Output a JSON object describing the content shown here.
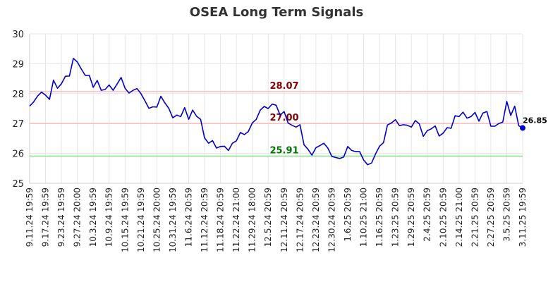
{
  "chart_data": {
    "type": "line",
    "title": "OSEA Long Term Signals",
    "xlabel": "",
    "ylabel": "",
    "ylim": [
      25,
      30
    ],
    "yticks": [
      "25",
      "26",
      "27",
      "28",
      "29",
      "30"
    ],
    "grid": true,
    "xticks": [
      "9.11.24 19:59",
      "9.17.24 19:59",
      "9.23.24 19:59",
      "9.27.24 20:00",
      "10.3.24 19:59",
      "10.9.24 19:59",
      "10.15.24 19:59",
      "10.21.24 19:59",
      "10.25.24 20:00",
      "10.31.24 19:59",
      "11.6.24 20:59",
      "11.12.24 20:59",
      "11.18.24 20:59",
      "11.22.24 21:00",
      "11.29.24 18:00",
      "12.5.24 20:59",
      "12.11.24 20:59",
      "12.17.24 20:59",
      "12.23.24 20:59",
      "12.30.24 20:59",
      "1.6.25 20:59",
      "1.10.25 21:00",
      "1.16.25 20:59",
      "1.23.25 20:59",
      "1.29.25 20:59",
      "2.4.25 20:59",
      "2.10.25 20:59",
      "2.14.25 21:00",
      "2.21.25 20:59",
      "2.27.25 20:59",
      "3.5.25 20:59",
      "3.11.25 19:59"
    ],
    "series": [
      {
        "color": "#0000cc",
        "values": [
          27.58,
          27.72,
          27.92,
          28.05,
          27.95,
          27.81,
          28.45,
          28.18,
          28.33,
          28.58,
          28.59,
          29.18,
          29.06,
          28.82,
          28.61,
          28.61,
          28.21,
          28.44,
          28.11,
          28.14,
          28.29,
          28.11,
          28.32,
          28.54,
          28.18,
          28.02,
          28.11,
          28.17,
          28.0,
          27.76,
          27.51,
          27.56,
          27.55,
          27.91,
          27.69,
          27.51,
          27.19,
          27.28,
          27.23,
          27.53,
          27.14,
          27.45,
          27.24,
          27.14,
          26.52,
          26.34,
          26.43,
          26.18,
          26.23,
          26.24,
          26.1,
          26.34,
          26.42,
          26.7,
          26.63,
          26.73,
          27.02,
          27.14,
          27.45,
          27.57,
          27.5,
          27.65,
          27.61,
          27.28,
          27.4,
          27.02,
          26.94,
          26.88,
          26.96,
          26.29,
          26.14,
          25.94,
          26.19,
          26.26,
          26.34,
          26.18,
          25.9,
          25.86,
          25.83,
          25.88,
          26.23,
          26.1,
          26.06,
          26.06,
          25.78,
          25.62,
          25.68,
          25.98,
          26.24,
          26.36,
          26.95,
          27.02,
          27.13,
          26.93,
          26.96,
          26.94,
          26.88,
          27.1,
          26.99,
          26.57,
          26.76,
          26.82,
          26.92,
          26.58,
          26.68,
          26.86,
          26.84,
          27.26,
          27.23,
          27.38,
          27.18,
          27.23,
          27.37,
          27.08,
          27.35,
          27.4,
          26.91,
          26.91,
          27.0,
          27.05,
          27.74,
          27.27,
          27.58,
          26.93,
          26.85
        ]
      }
    ],
    "reference_lines": [
      {
        "value": 28.07,
        "label": "28.07",
        "line_color": "#ffbbbb",
        "text_color": "#880000"
      },
      {
        "value": 27.0,
        "label": "27.00",
        "line_color": "#ffbbbb",
        "text_color": "#880000"
      },
      {
        "value": 25.91,
        "label": "25.91",
        "line_color": "#88dd88",
        "text_color": "#007700"
      }
    ],
    "last_value_label": "26.85"
  }
}
